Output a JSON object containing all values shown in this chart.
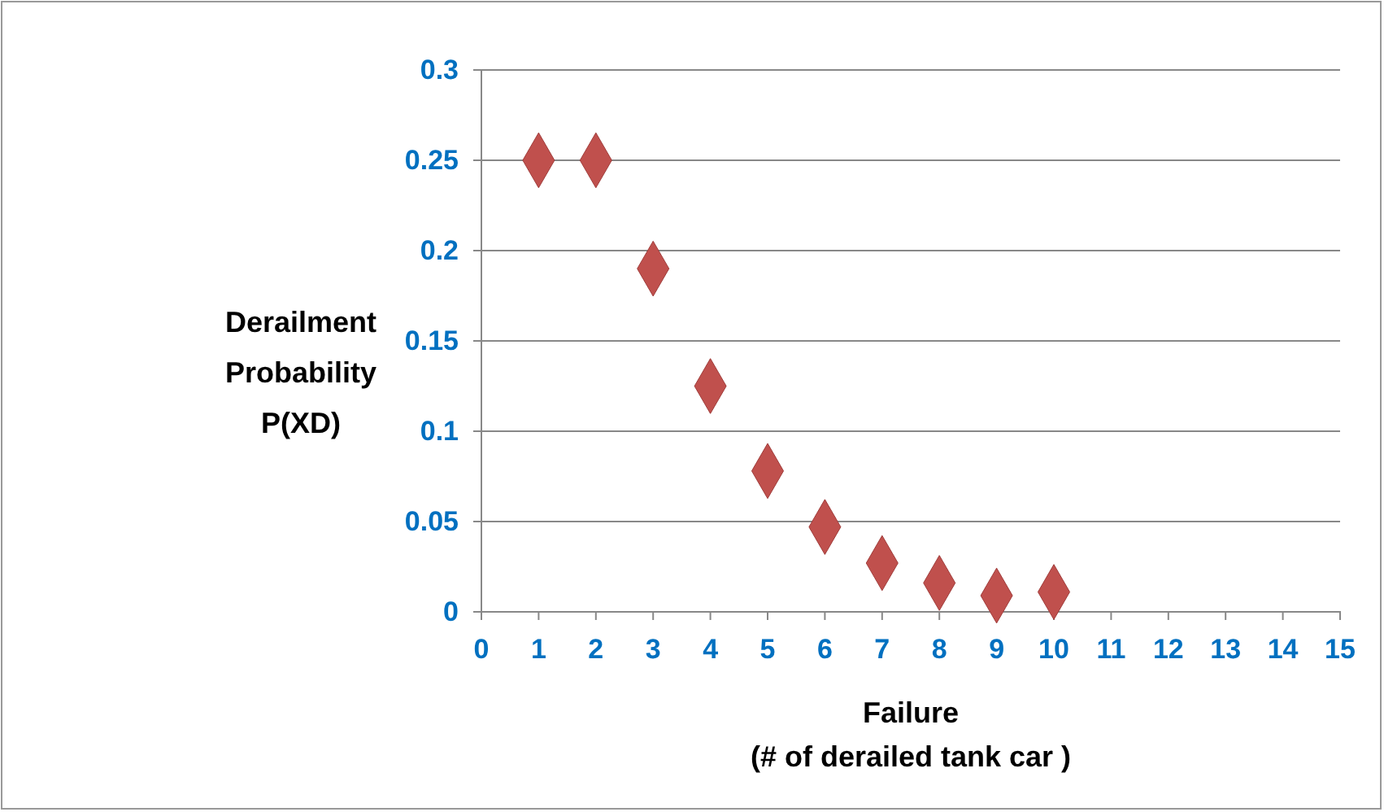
{
  "chart_data": {
    "type": "scatter",
    "xlabel": "Failure\n(# of derailed tank car )",
    "ylabel": "Derailment\nProbability\nP(XD)",
    "x": [
      1,
      2,
      3,
      4,
      5,
      6,
      7,
      8,
      9,
      10
    ],
    "series": [
      {
        "color": "#c0504d",
        "values": [
          0.25,
          0.25,
          0.19,
          0.125,
          0.078,
          0.047,
          0.027,
          0.016,
          0.009,
          0.011
        ]
      }
    ],
    "xlim": [
      0,
      15
    ],
    "xticks": [
      0,
      1,
      2,
      3,
      4,
      5,
      6,
      7,
      8,
      9,
      10,
      11,
      12,
      13,
      14,
      15
    ],
    "ylim": [
      0,
      0.3
    ],
    "yticks": [
      0,
      0.05,
      0.1,
      0.15,
      0.2,
      0.25,
      0.3
    ],
    "grid": "y",
    "marker": "diamond"
  }
}
